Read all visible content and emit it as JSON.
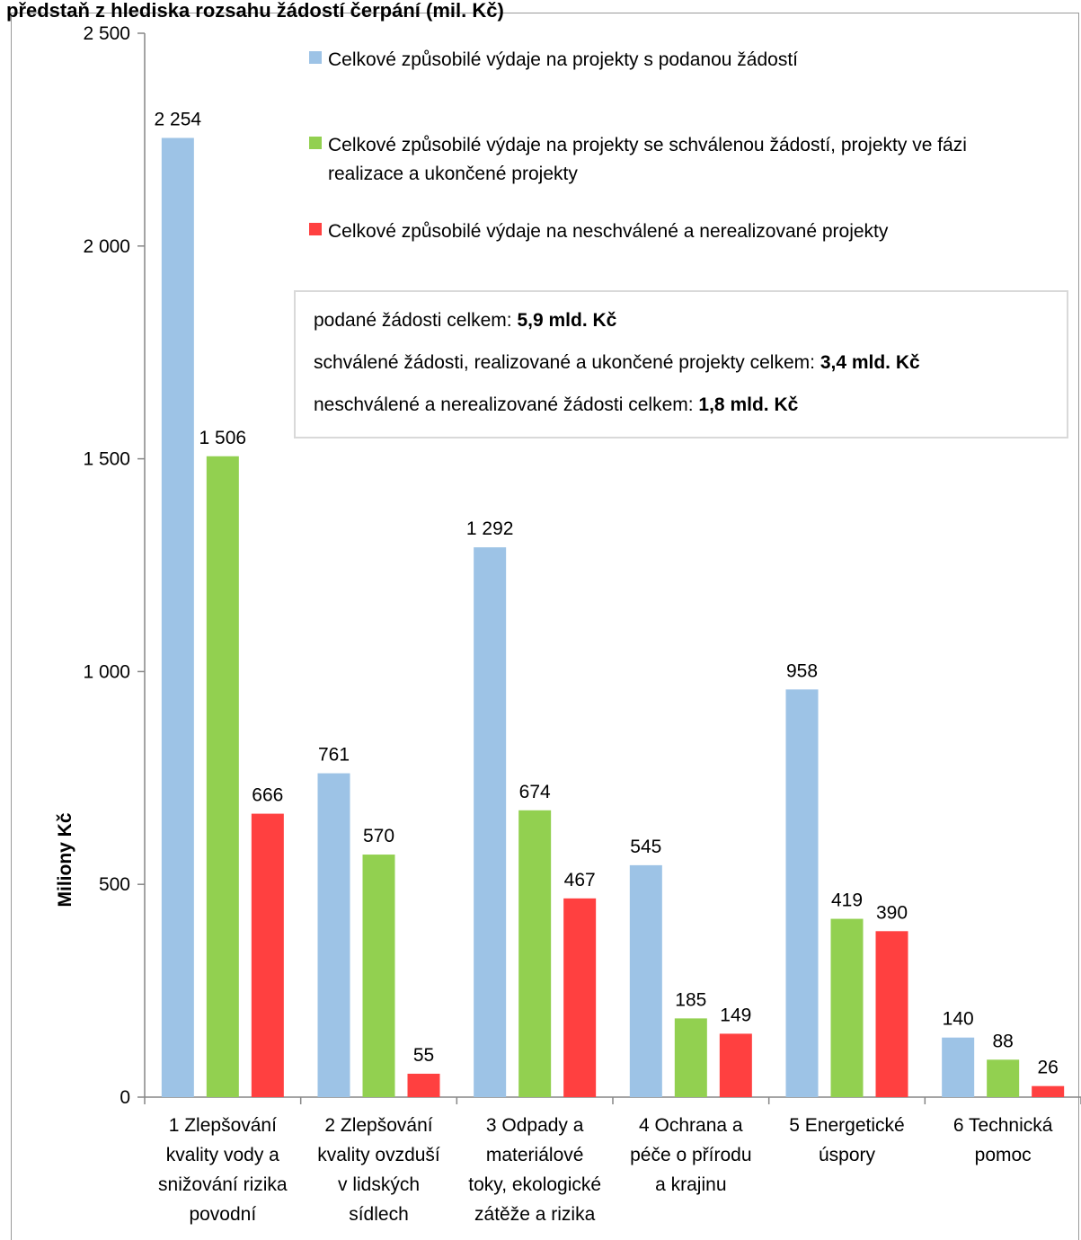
{
  "chart_data": {
    "type": "bar",
    "title": "předstaň z hlediska rozsahu žádostí čerpání (mil. Kč)",
    "ylabel": "Miliony Kč",
    "xlabel": "",
    "ylim": [
      0,
      2500
    ],
    "yticks": [
      0,
      500,
      1000,
      1500,
      2000,
      2500
    ],
    "ytick_labels": [
      "0",
      "500",
      "1 000",
      "1 500",
      "2 000",
      "2 500"
    ],
    "categories": [
      [
        "1 Zlepšování",
        "kvality vody a",
        "snižování rizika",
        "povodní"
      ],
      [
        "2 Zlepšování",
        "kvality ovzduší",
        "v lidských",
        "sídlech"
      ],
      [
        "3 Odpady a",
        "materiálové",
        "toky, ekologické",
        "zátěže a rizika"
      ],
      [
        "4 Ochrana a",
        "péče o přírodu",
        "a krajinu"
      ],
      [
        "5 Energetické",
        "úspory"
      ],
      [
        "6 Technická",
        "pomoc"
      ]
    ],
    "series": [
      {
        "name": "Celkové způsobilé výdaje na projekty s podanou žádostí",
        "color": "#9dc3e6",
        "values": [
          2254,
          761,
          1292,
          545,
          958,
          140
        ],
        "labels": [
          "2 254",
          "761",
          "1 292",
          "545",
          "958",
          "140"
        ]
      },
      {
        "name": "Celkové způsobilé výdaje na projekty se schválenou žádostí, projekty ve fázi realizace a ukončené projekty",
        "color": "#92d050",
        "values": [
          1506,
          570,
          674,
          185,
          419,
          88
        ],
        "labels": [
          "1 506",
          "570",
          "674",
          "185",
          "419",
          "88"
        ]
      },
      {
        "name": "Celkové způsobilé výdaje na neschválené a nerealizované projekty",
        "color": "#ff4040",
        "values": [
          666,
          55,
          467,
          149,
          390,
          26
        ],
        "labels": [
          "666",
          "55",
          "467",
          "149",
          "390",
          "26"
        ]
      }
    ],
    "legend": {
      "placement": "top-right",
      "entries": [
        [
          "Celkové způsobilé výdaje na projekty s podanou žádostí"
        ],
        [
          "Celkové způsobilé výdaje na projekty se schválenou žádostí, projekty ve fázi",
          "realizace a ukončené projekty"
        ],
        [
          "Celkové způsobilé výdaje na neschválené a nerealizované projekty"
        ]
      ]
    },
    "grid": false
  },
  "summary": {
    "submitted_text": "podané žádosti celkem: ",
    "submitted_value": "5,9 mld. Kč",
    "approved_text": "schválené žádosti, realizované a ukončené projekty celkem: ",
    "approved_value": "3,4 mld. Kč",
    "rejected_text": "neschválené a nerealizované žádosti celkem: ",
    "rejected_value": "1,8 mld. Kč"
  }
}
